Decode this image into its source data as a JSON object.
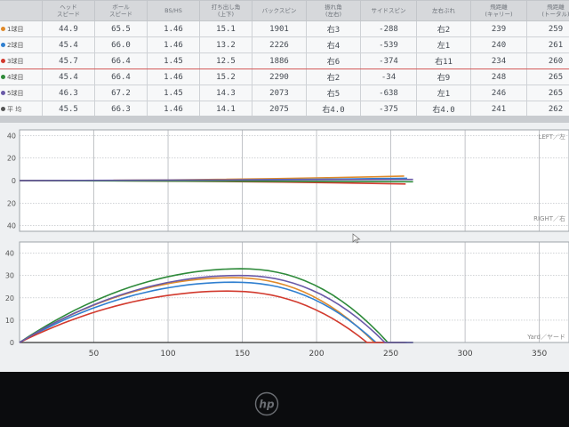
{
  "table": {
    "headers": [
      "",
      "ヘッド\nスピード",
      "ボール\nスピード",
      "BS/HS",
      "打ち出し角\n(上下)",
      "バックスピン",
      "振れ角\n(左右)",
      "サイドスピン",
      "左右ぶれ",
      "飛距離\n(キャリー)",
      "飛距離\n(トータル)"
    ],
    "rows": [
      {
        "label": "1球目",
        "color": "#e08a2a",
        "cells": [
          "44.9",
          "65.5",
          "1.46",
          "15.1",
          "1901",
          "右3",
          "-288",
          "右2",
          "239",
          "259"
        ]
      },
      {
        "label": "2球目",
        "color": "#2f7fd0",
        "cells": [
          "45.4",
          "66.0",
          "1.46",
          "13.2",
          "2226",
          "右4",
          "-539",
          "左1",
          "240",
          "261"
        ]
      },
      {
        "label": "3球目",
        "color": "#d23a2e",
        "cells": [
          "45.7",
          "66.4",
          "1.45",
          "12.5",
          "1886",
          "右6",
          "-374",
          "右11",
          "234",
          "260"
        ]
      },
      {
        "label": "4球目",
        "color": "#2e8a3a",
        "cells": [
          "45.4",
          "66.4",
          "1.46",
          "15.2",
          "2290",
          "右2",
          "-34",
          "右9",
          "248",
          "265"
        ]
      },
      {
        "label": "5球目",
        "color": "#6a5aa8",
        "cells": [
          "46.3",
          "67.2",
          "1.45",
          "14.3",
          "2073",
          "右5",
          "-638",
          "左1",
          "246",
          "265"
        ]
      },
      {
        "label": "平 均",
        "color": "#555555",
        "cells": [
          "45.5",
          "66.3",
          "1.46",
          "14.1",
          "2075",
          "右4.0",
          "-375",
          "右4.0",
          "241",
          "262"
        ]
      }
    ]
  },
  "top_chart": {
    "y_ticks": [
      "40",
      "20",
      "0",
      "20",
      "40"
    ],
    "label_left": "LEFT／左",
    "label_right": "RIGHT／右"
  },
  "chart_data": {
    "type": "line",
    "xlabel": "Yard／ヤード",
    "x_ticks": [
      50,
      100,
      150,
      200,
      250,
      300,
      350
    ],
    "xlim": [
      0,
      370
    ],
    "ylim": [
      0,
      45
    ],
    "y_ticks": [
      0,
      10,
      20,
      30,
      40
    ],
    "series": [
      {
        "name": "1球目",
        "color": "#e08a2a",
        "carry": 239,
        "apex": 29,
        "total": 259,
        "lateral_end": 4
      },
      {
        "name": "2球目",
        "color": "#2f7fd0",
        "carry": 240,
        "apex": 27,
        "total": 261,
        "lateral_end": 2
      },
      {
        "name": "3球目",
        "color": "#d23a2e",
        "carry": 234,
        "apex": 23,
        "total": 260,
        "lateral_end": -3
      },
      {
        "name": "4球目",
        "color": "#2e8a3a",
        "carry": 248,
        "apex": 33,
        "total": 265,
        "lateral_end": -1
      },
      {
        "name": "5球目",
        "color": "#6a5aa8",
        "carry": 246,
        "apex": 30,
        "total": 265,
        "lateral_end": 1
      }
    ]
  },
  "brand": "hp"
}
